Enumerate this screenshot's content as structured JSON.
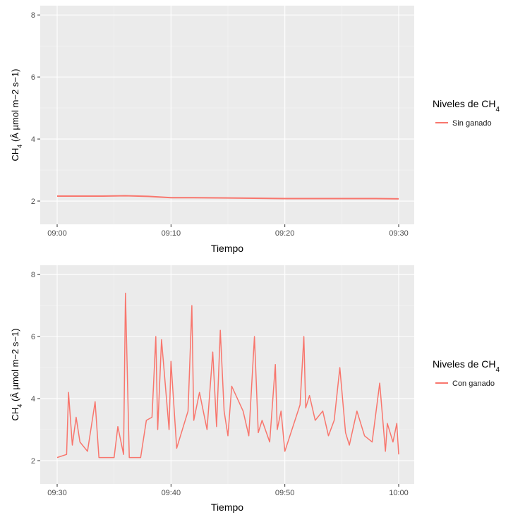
{
  "chart_data": [
    {
      "type": "line",
      "xlabel": "Tiempo",
      "ylabel": "CH4 (Â µmol m−2 s−1)",
      "x_range": [
        "09:00",
        "09:30"
      ],
      "ylim": [
        1.25,
        8.3
      ],
      "xticks": [
        "09:00",
        "09:10",
        "09:20",
        "09:30"
      ],
      "yticks": [
        2,
        4,
        6,
        8
      ],
      "grid": true,
      "legend": {
        "title": "Niveles de CH4",
        "position": "right"
      },
      "series": [
        {
          "name": "Sin ganado",
          "color": "#f8766d",
          "x": [
            "09:00",
            "09:02",
            "09:04",
            "09:06",
            "09:08",
            "09:10",
            "09:12",
            "09:15",
            "09:18",
            "09:20",
            "09:22",
            "09:25",
            "09:28",
            "09:30"
          ],
          "y": [
            2.16,
            2.16,
            2.16,
            2.17,
            2.15,
            2.11,
            2.11,
            2.1,
            2.09,
            2.08,
            2.08,
            2.08,
            2.08,
            2.07
          ]
        }
      ]
    },
    {
      "type": "line",
      "xlabel": "Tiempo",
      "ylabel": "CH4 (Â µmol m−2 s−1)",
      "x_range": [
        "09:30",
        "10:00"
      ],
      "ylim": [
        1.25,
        8.3
      ],
      "xticks": [
        "09:30",
        "09:40",
        "09:50",
        "10:00"
      ],
      "yticks": [
        2,
        4,
        6,
        8
      ],
      "grid": true,
      "legend": {
        "title": "Niveles de CH4",
        "position": "right"
      },
      "series": [
        {
          "name": "Con ganado",
          "color": "#f8766d",
          "x": [
            "09:30",
            "09:30:50",
            "09:31",
            "09:31:20",
            "09:31:40",
            "09:32",
            "09:32:40",
            "09:33:20",
            "09:33:40",
            "09:34:20",
            "09:35",
            "09:35:20",
            "09:35:50",
            "09:36",
            "09:36:20",
            "09:37:20",
            "09:37:50",
            "09:38:20",
            "09:38:40",
            "09:38:50",
            "09:39:10",
            "09:39:50",
            "09:40",
            "09:40:30",
            "09:41:30",
            "09:41:50",
            "09:42",
            "09:42:30",
            "09:43:10",
            "09:43:40",
            "09:44",
            "09:44:20",
            "09:44:40",
            "09:45",
            "09:45:20",
            "09:46:20",
            "09:46:50",
            "09:47:20",
            "09:47:40",
            "09:48",
            "09:48:40",
            "09:49:10",
            "09:49:20",
            "09:49:40",
            "09:50",
            "09:51:20",
            "09:51:40",
            "09:51:50",
            "09:52:10",
            "09:52:40",
            "09:53:20",
            "09:53:50",
            "09:54:20",
            "09:54:50",
            "09:55:20",
            "09:55:40",
            "09:56:20",
            "09:57",
            "09:57:40",
            "09:58:20",
            "09:58:50",
            "09:59",
            "09:59:30",
            "09:59:50",
            "10:00"
          ],
          "y": [
            2.1,
            2.2,
            4.2,
            2.5,
            3.4,
            2.6,
            2.3,
            3.9,
            2.1,
            2.1,
            2.1,
            3.1,
            2.2,
            7.4,
            2.1,
            2.1,
            3.3,
            3.4,
            6.0,
            3.0,
            5.9,
            3.0,
            5.2,
            2.4,
            3.6,
            7.0,
            3.3,
            4.2,
            3.0,
            5.5,
            3.1,
            6.2,
            3.6,
            2.8,
            4.4,
            3.6,
            2.8,
            6.0,
            2.9,
            3.3,
            2.6,
            5.1,
            3.0,
            3.6,
            2.3,
            3.8,
            6.0,
            3.7,
            4.1,
            3.3,
            3.6,
            2.8,
            3.3,
            5.0,
            2.9,
            2.5,
            3.6,
            2.8,
            2.6,
            4.5,
            2.3,
            3.2,
            2.6,
            3.2,
            2.2
          ]
        }
      ]
    }
  ]
}
